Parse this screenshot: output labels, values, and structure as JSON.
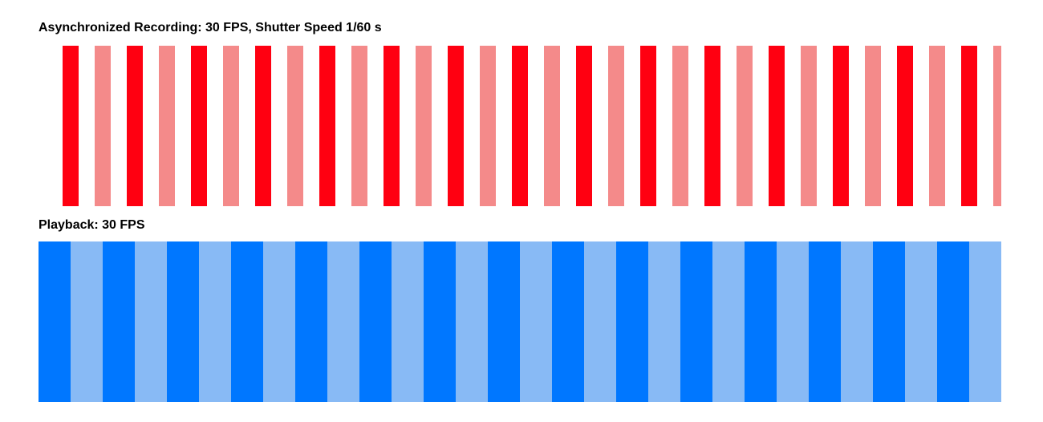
{
  "recording": {
    "title": "Asynchronized Recording: 30 FPS, Shutter Speed 1/60 s",
    "frame_count": 30,
    "colors": [
      "#ff0011",
      "#f48a8a"
    ]
  },
  "playback": {
    "title": "Playback: 30 FPS",
    "frame_count": 30,
    "colors": [
      "#0077ff",
      "#88baf5"
    ]
  }
}
